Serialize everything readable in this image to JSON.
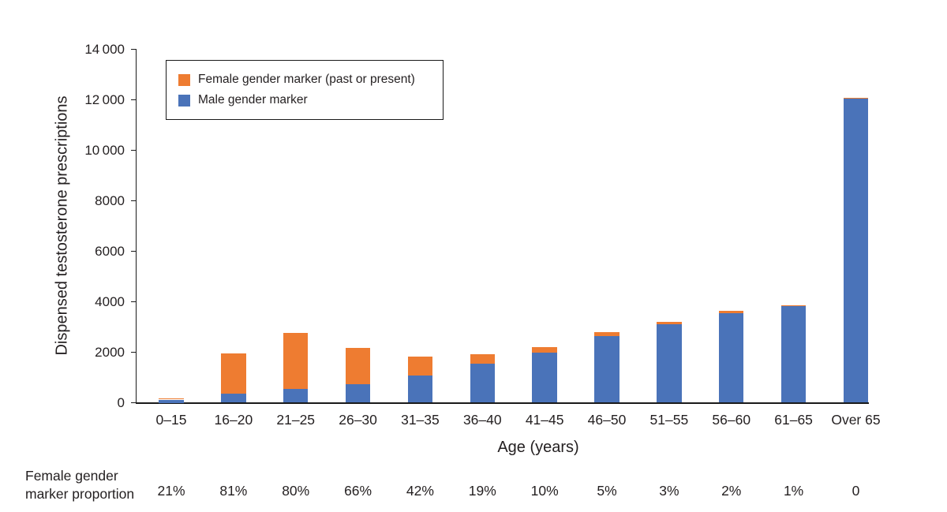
{
  "figure": {
    "ylabel": "Dispensed testosterone prescriptions",
    "xlabel": "Age (years)",
    "proportion_label": "Female gender marker proportion",
    "background": "#ffffff",
    "text_color": "#231F20",
    "legend": [
      {
        "label": "Female gender marker (past or present)",
        "color": "#EE7C31"
      },
      {
        "label": "Male gender marker",
        "color": "#4A73B9"
      }
    ]
  },
  "chart_data": {
    "type": "bar",
    "stacked": true,
    "title": "",
    "xlabel": "Age (years)",
    "ylabel": "Dispensed testosterone prescriptions",
    "ylim": [
      0,
      14000
    ],
    "ytick_step": 2000,
    "ytick_labels": [
      "0",
      "2000",
      "4000",
      "6000",
      "8000",
      "10 000",
      "12 000",
      "14 000"
    ],
    "grid": false,
    "legend_position": "upper-left-inside",
    "categories": [
      "0–15",
      "16–20",
      "21–25",
      "26–30",
      "31–35",
      "36–40",
      "41–45",
      "46–50",
      "51–55",
      "56–60",
      "61–65",
      "Over 65"
    ],
    "series": [
      {
        "name": "Male gender marker",
        "color": "#4A73B9",
        "values": [
          125,
          370,
          555,
          740,
          1065,
          1560,
          1990,
          2655,
          3105,
          3555,
          3830,
          12040
        ]
      },
      {
        "name": "Female gender marker (past or present)",
        "color": "#EE7C31",
        "values": [
          33,
          1580,
          2215,
          1430,
          775,
          370,
          220,
          140,
          95,
          75,
          40,
          50
        ]
      }
    ],
    "female_proportion_labels": [
      "21%",
      "81%",
      "80%",
      "66%",
      "42%",
      "19%",
      "10%",
      "5%",
      "3%",
      "2%",
      "1%",
      "0"
    ]
  }
}
